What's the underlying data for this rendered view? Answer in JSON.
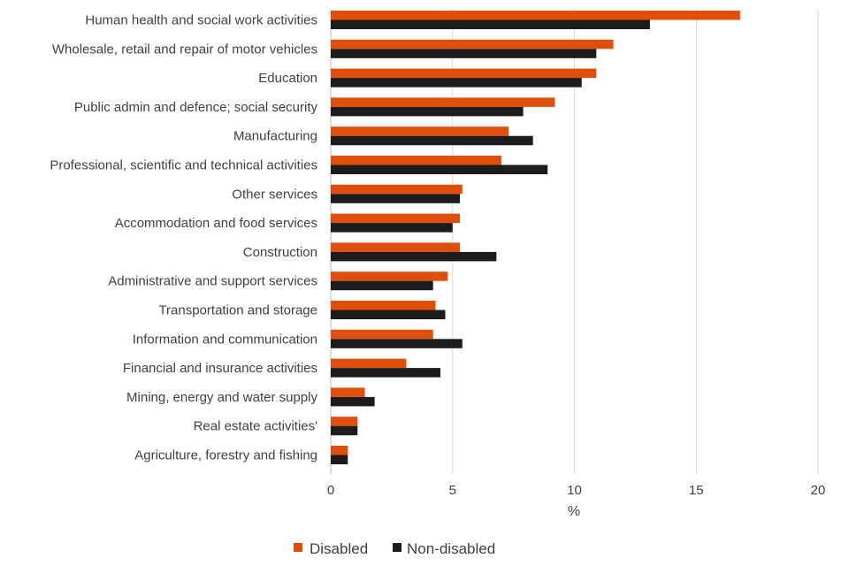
{
  "chart_data": {
    "type": "bar",
    "orientation": "horizontal",
    "title": "",
    "categories": [
      "Human health and social work activities",
      "Wholesale, retail and repair of motor vehicles",
      "Education",
      "Public admin and defence; social security",
      "Manufacturing",
      "Professional, scientific and technical activities",
      "Other services",
      "Accommodation and food services",
      "Construction",
      "Administrative and support services",
      "Transportation and storage",
      "Information and communication",
      "Financial and insurance activities",
      "Mining, energy and water supply",
      "Real estate activities'",
      "Agriculture, forestry and fishing"
    ],
    "series": [
      {
        "name": "Disabled",
        "color": "#e04e0b",
        "values": [
          16.8,
          11.6,
          10.9,
          9.2,
          7.3,
          7.0,
          5.4,
          5.3,
          5.3,
          4.8,
          4.3,
          4.2,
          3.1,
          1.4,
          1.1,
          0.7
        ]
      },
      {
        "name": "Non-disabled",
        "color": "#1c1c1c",
        "values": [
          13.1,
          10.9,
          10.3,
          7.9,
          8.3,
          8.9,
          5.3,
          5.0,
          6.8,
          4.2,
          4.7,
          5.4,
          4.5,
          1.8,
          1.1,
          0.7
        ]
      }
    ],
    "xlabel": "%",
    "ylabel": "",
    "xlim": [
      0,
      20
    ],
    "xticks": [
      "0",
      "5",
      "10",
      "15",
      "20"
    ],
    "grid": true,
    "legend": "bottom-center"
  }
}
